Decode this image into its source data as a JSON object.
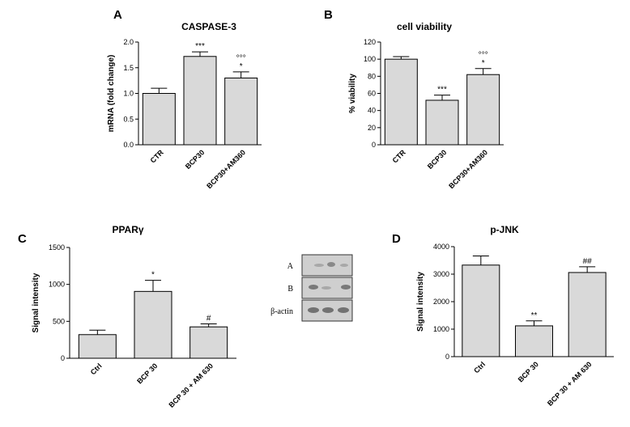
{
  "chart_data": [
    {
      "panel": "A",
      "type": "bar",
      "title": "CASPASE-3",
      "ylabel": "mRNA (fold change)",
      "categories": [
        "CTR",
        "BCP30",
        "BCP30+AM360"
      ],
      "values": [
        1.0,
        1.72,
        1.3
      ],
      "errors": [
        0.1,
        0.09,
        0.12
      ],
      "significance": [
        [],
        [
          "***"
        ],
        [
          "°°°",
          "*"
        ]
      ],
      "ylim": [
        0,
        2.0
      ],
      "yticks": [
        "0.0",
        "0.5",
        "1.0",
        "1.5",
        "2.0"
      ],
      "bar_color": "#d9d9d9"
    },
    {
      "panel": "B",
      "type": "bar",
      "title": "cell viability",
      "ylabel": "% viability",
      "categories": [
        "CTR",
        "BCP30",
        "BCP30+AM360"
      ],
      "values": [
        100,
        52,
        82
      ],
      "errors": [
        3,
        6,
        7
      ],
      "significance": [
        [],
        [
          "***"
        ],
        [
          "°°°",
          "*"
        ]
      ],
      "ylim": [
        0,
        120
      ],
      "yticks": [
        "0",
        "20",
        "40",
        "60",
        "80",
        "100",
        "120"
      ],
      "bar_color": "#d9d9d9"
    },
    {
      "panel": "C",
      "type": "bar",
      "title": "PPARγ",
      "ylabel": "Signal intensity",
      "categories": [
        "Ctrl",
        "BCP 30",
        "BCP 30 + AM 630"
      ],
      "values": [
        320,
        905,
        425
      ],
      "errors": [
        60,
        150,
        40
      ],
      "significance": [
        [],
        [
          "*"
        ],
        [
          "#"
        ]
      ],
      "ylim": [
        0,
        1500
      ],
      "yticks": [
        "0",
        "500",
        "1000",
        "1500"
      ],
      "bar_color": "#d9d9d9"
    },
    {
      "panel": "D",
      "type": "bar",
      "title": "p-JNK",
      "ylabel": "Signal intensity",
      "categories": [
        "Ctrl",
        "BCP 30",
        "BCP 30 + AM 630"
      ],
      "values": [
        3330,
        1120,
        3060
      ],
      "errors": [
        330,
        180,
        210
      ],
      "significance": [
        [],
        [
          "**"
        ],
        [
          "##"
        ]
      ],
      "ylim": [
        0,
        4000
      ],
      "yticks": [
        "0",
        "1000",
        "2000",
        "3000",
        "4000"
      ],
      "bar_color": "#d9d9d9"
    }
  ],
  "blot": {
    "labels": [
      "A",
      "B",
      "β-actin"
    ]
  }
}
